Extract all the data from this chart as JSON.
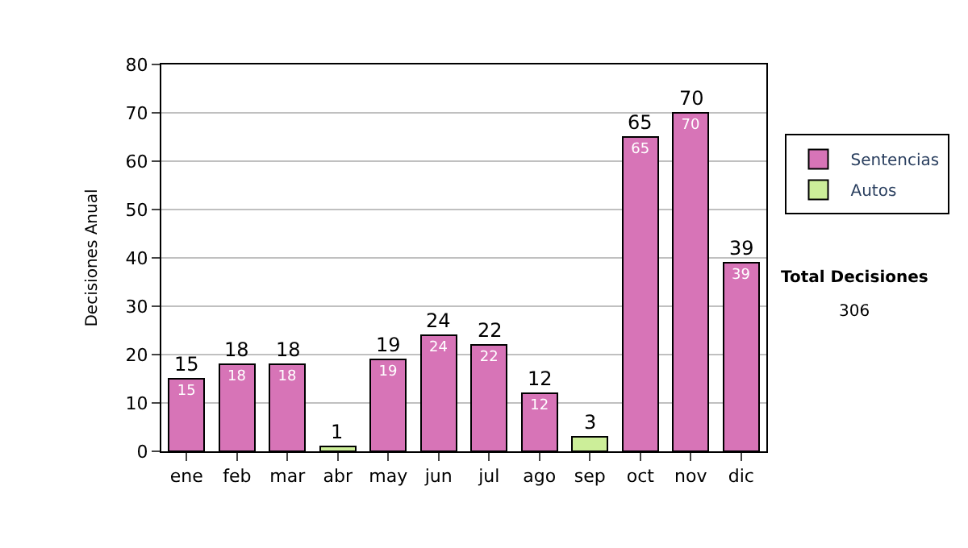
{
  "chart_data": {
    "type": "bar",
    "stacked": true,
    "ylabel": "Decisiones Anual",
    "categories": [
      "ene",
      "feb",
      "mar",
      "abr",
      "may",
      "jun",
      "jul",
      "ago",
      "sep",
      "oct",
      "nov",
      "dic"
    ],
    "series": [
      {
        "name": "Sentencias",
        "color": "#d774b7",
        "values": [
          15,
          18,
          18,
          null,
          19,
          24,
          22,
          12,
          null,
          65,
          70,
          39
        ],
        "value_labels": [
          "15",
          "18",
          "18",
          null,
          "19",
          "24",
          "22",
          "12",
          null,
          "65",
          "70",
          "39"
        ]
      },
      {
        "name": "Autos",
        "color": "#ccee99",
        "values": [
          null,
          null,
          null,
          1,
          null,
          null,
          null,
          null,
          3,
          null,
          null,
          null
        ]
      }
    ],
    "totals": [
      "15",
      "18",
      "18",
      "1",
      "19",
      "24",
      "22",
      "12",
      "3",
      "65",
      "70",
      "39"
    ],
    "ylim": [
      0,
      80
    ],
    "yticks": [
      0,
      10,
      20,
      30,
      40,
      50,
      60,
      70,
      80
    ],
    "grid": "y",
    "legend": "right",
    "annotations": [
      "Total Decisiones",
      "306"
    ]
  }
}
